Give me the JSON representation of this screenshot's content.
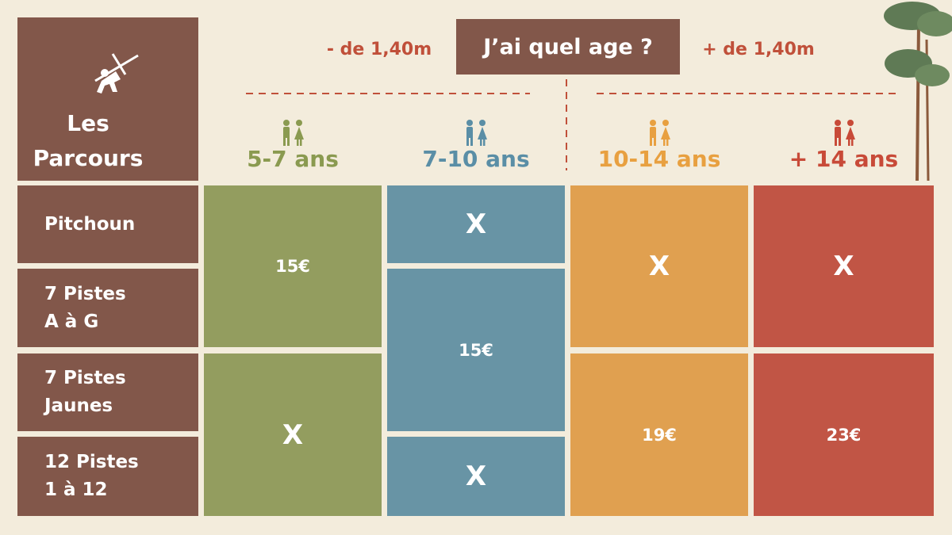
{
  "header": {
    "title_lines": [
      "Les",
      "Parcours"
    ],
    "question": "J’ai quel age ?",
    "groups": [
      "- de 1,40m",
      "+ de 1,40m"
    ]
  },
  "table": {
    "columns": [
      {
        "label": "5-7 ans",
        "color": "#939d5f",
        "text_color": "#8a9a50"
      },
      {
        "label": "7-10 ans",
        "color": "#6894a5",
        "text_color": "#5a8ea6"
      },
      {
        "label": "10-14 ans",
        "color": "#e0a050",
        "text_color": "#e8a040"
      },
      {
        "label": "+ 14 ans",
        "color": "#c15545",
        "text_color": "#c84a38"
      }
    ],
    "row_labels": [
      [
        "Pitchoun"
      ],
      [
        "7 Pistes",
        "A à G"
      ],
      [
        "7 Pistes",
        "Jaunes"
      ],
      [
        "12 Pistes",
        "1 à 12"
      ]
    ],
    "rows": [
      [
        "15€",
        "X",
        "X",
        "X"
      ],
      [
        null,
        "15€",
        null,
        null
      ],
      [
        "X",
        null,
        "19€",
        "23€"
      ],
      [
        null,
        "X",
        null,
        null
      ]
    ]
  }
}
